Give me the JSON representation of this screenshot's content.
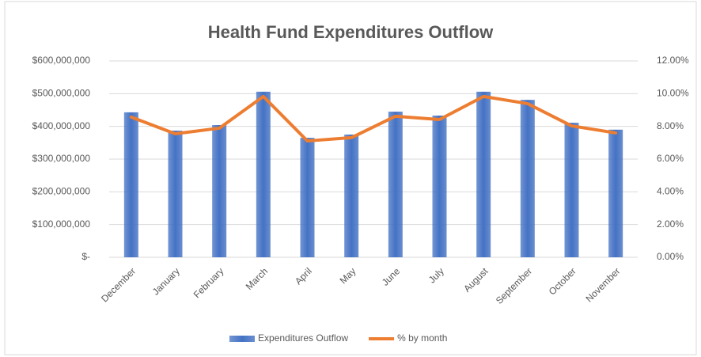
{
  "chart_data": {
    "type": "bar-line",
    "title": "Health Fund Expenditures Outflow",
    "categories": [
      "December",
      "January",
      "February",
      "March",
      "April",
      "May",
      "June",
      "July",
      "August",
      "September",
      "October",
      "November"
    ],
    "series": [
      {
        "name": "Expenditures Outflow",
        "type": "bar",
        "color": "#4472c4",
        "values": [
          443000000,
          387000000,
          404000000,
          506000000,
          365000000,
          375000000,
          445000000,
          433000000,
          506000000,
          481000000,
          411000000,
          390000000
        ]
      },
      {
        "name": "% by month",
        "type": "line",
        "axis": "y2",
        "color": "#ed7d31",
        "values": [
          8.57,
          7.55,
          7.89,
          9.83,
          7.11,
          7.31,
          8.62,
          8.42,
          9.83,
          9.39,
          8.03,
          7.6
        ]
      }
    ],
    "ylim": [
      0,
      600000000
    ],
    "yticks": [
      {
        "value": 0,
        "label": "$-"
      },
      {
        "value": 100000000,
        "label": "$100,000,000"
      },
      {
        "value": 200000000,
        "label": "$200,000,000"
      },
      {
        "value": 300000000,
        "label": "$300,000,000"
      },
      {
        "value": 400000000,
        "label": "$400,000,000"
      },
      {
        "value": 500000000,
        "label": "$500,000,000"
      },
      {
        "value": 600000000,
        "label": "$600,000,000"
      }
    ],
    "y2lim": [
      0,
      12
    ],
    "y2ticks": [
      {
        "value": 0,
        "label": "0.00%"
      },
      {
        "value": 2,
        "label": "2.00%"
      },
      {
        "value": 4,
        "label": "4.00%"
      },
      {
        "value": 6,
        "label": "6.00%"
      },
      {
        "value": 8,
        "label": "8.00%"
      },
      {
        "value": 10,
        "label": "10.00%"
      },
      {
        "value": 12,
        "label": "12.00%"
      }
    ],
    "grid": true,
    "legend": "bottom"
  }
}
